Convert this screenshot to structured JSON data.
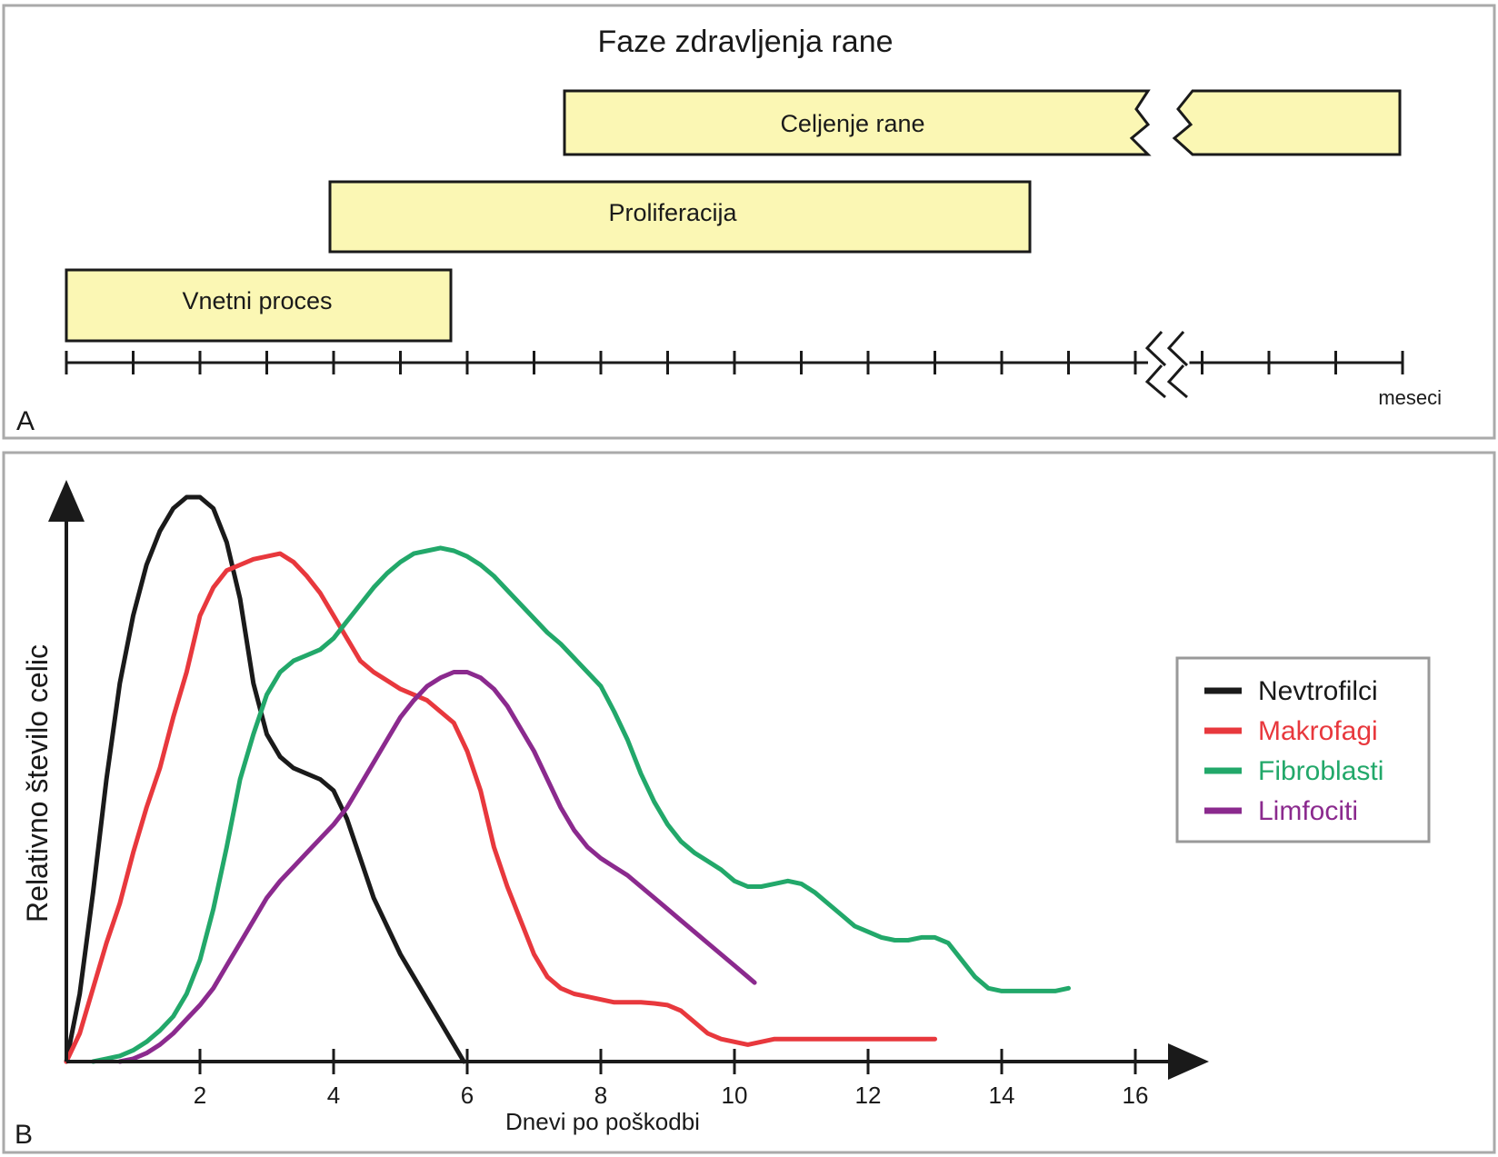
{
  "panel_a": {
    "letter": "A",
    "title": "Faze zdravljenja rane",
    "unit_label": "meseci",
    "phases": [
      {
        "label": "Vnetni proces",
        "start": 0,
        "end": 5.75,
        "broken": false
      },
      {
        "label": "Proliferacija",
        "start": 3.95,
        "end": 14.4,
        "broken": false
      },
      {
        "label": "Celjenje rane",
        "start": 7.45,
        "end": 20,
        "broken": true
      }
    ],
    "axis_ticks": 21,
    "break_between_ticks": [
      16,
      17
    ],
    "colors": {
      "bar_fill": "#fbf7b4",
      "stroke": "#1a1a1a",
      "frame": "#aaaaaa"
    }
  },
  "panel_b": {
    "letter": "B",
    "ylabel": "Relativno število celic",
    "xlabel": "Dnevi po poškodbi",
    "legend_position": "right"
  },
  "chart_data": {
    "type": "line",
    "xlabel": "Dnevi po poškodbi",
    "ylabel": "Relativno število celic",
    "xlim": [
      0,
      17
    ],
    "ylim": [
      0,
      100
    ],
    "xticks": [
      2,
      4,
      6,
      8,
      10,
      12,
      14,
      16
    ],
    "legend_position": "right",
    "series": [
      {
        "name": "Nevtrofilci",
        "color": "#1a1a1a",
        "points": [
          [
            0,
            0
          ],
          [
            0.2,
            12
          ],
          [
            0.4,
            30
          ],
          [
            0.6,
            50
          ],
          [
            0.8,
            67
          ],
          [
            1.0,
            79
          ],
          [
            1.2,
            88
          ],
          [
            1.4,
            94
          ],
          [
            1.6,
            98
          ],
          [
            1.8,
            100
          ],
          [
            2.0,
            100
          ],
          [
            2.2,
            98
          ],
          [
            2.4,
            92
          ],
          [
            2.6,
            82
          ],
          [
            2.8,
            67
          ],
          [
            3.0,
            58
          ],
          [
            3.2,
            54
          ],
          [
            3.4,
            52
          ],
          [
            3.6,
            51
          ],
          [
            3.8,
            50
          ],
          [
            4.0,
            48
          ],
          [
            4.2,
            43
          ],
          [
            4.4,
            36
          ],
          [
            4.6,
            29
          ],
          [
            4.8,
            24
          ],
          [
            5.0,
            19
          ],
          [
            5.2,
            15
          ],
          [
            5.4,
            11
          ],
          [
            5.6,
            7
          ],
          [
            5.8,
            3
          ],
          [
            5.95,
            0
          ]
        ]
      },
      {
        "name": "Makrofagi",
        "color": "#e8383d",
        "points": [
          [
            0,
            0
          ],
          [
            0.2,
            5
          ],
          [
            0.4,
            13
          ],
          [
            0.6,
            21
          ],
          [
            0.8,
            28
          ],
          [
            1.0,
            37
          ],
          [
            1.2,
            45
          ],
          [
            1.4,
            52
          ],
          [
            1.6,
            61
          ],
          [
            1.8,
            69
          ],
          [
            2.0,
            79
          ],
          [
            2.2,
            84
          ],
          [
            2.4,
            87
          ],
          [
            2.6,
            88
          ],
          [
            2.8,
            89
          ],
          [
            3.0,
            89.5
          ],
          [
            3.2,
            90
          ],
          [
            3.4,
            88.5
          ],
          [
            3.6,
            86
          ],
          [
            3.8,
            83
          ],
          [
            4.0,
            79
          ],
          [
            4.2,
            75
          ],
          [
            4.4,
            71
          ],
          [
            4.6,
            69
          ],
          [
            4.8,
            67.5
          ],
          [
            5.0,
            66
          ],
          [
            5.2,
            65
          ],
          [
            5.4,
            64
          ],
          [
            5.6,
            62
          ],
          [
            5.8,
            60
          ],
          [
            6.0,
            55
          ],
          [
            6.2,
            48
          ],
          [
            6.4,
            38
          ],
          [
            6.6,
            31
          ],
          [
            6.8,
            25
          ],
          [
            7.0,
            19
          ],
          [
            7.2,
            15
          ],
          [
            7.4,
            13
          ],
          [
            7.6,
            12
          ],
          [
            7.8,
            11.5
          ],
          [
            8.0,
            11
          ],
          [
            8.2,
            10.5
          ],
          [
            8.4,
            10.5
          ],
          [
            8.6,
            10.5
          ],
          [
            8.8,
            10.3
          ],
          [
            9.0,
            10
          ],
          [
            9.2,
            9
          ],
          [
            9.4,
            7
          ],
          [
            9.6,
            5
          ],
          [
            9.8,
            4
          ],
          [
            10.0,
            3.5
          ],
          [
            10.2,
            3
          ],
          [
            10.4,
            3.5
          ],
          [
            10.6,
            4
          ],
          [
            11.0,
            4
          ],
          [
            12.0,
            4
          ],
          [
            13.0,
            4
          ]
        ]
      },
      {
        "name": "Fibroblasti",
        "color": "#22a86a",
        "points": [
          [
            0.4,
            0
          ],
          [
            0.6,
            0.5
          ],
          [
            0.8,
            1
          ],
          [
            1.0,
            2
          ],
          [
            1.2,
            3.5
          ],
          [
            1.4,
            5.5
          ],
          [
            1.6,
            8
          ],
          [
            1.8,
            12
          ],
          [
            2.0,
            18
          ],
          [
            2.2,
            27
          ],
          [
            2.4,
            38
          ],
          [
            2.6,
            50
          ],
          [
            2.8,
            58
          ],
          [
            3.0,
            65
          ],
          [
            3.2,
            69
          ],
          [
            3.4,
            71
          ],
          [
            3.6,
            72
          ],
          [
            3.8,
            73
          ],
          [
            4.0,
            75
          ],
          [
            4.2,
            78
          ],
          [
            4.4,
            81
          ],
          [
            4.6,
            84
          ],
          [
            4.8,
            86.5
          ],
          [
            5.0,
            88.5
          ],
          [
            5.2,
            90
          ],
          [
            5.4,
            90.5
          ],
          [
            5.6,
            91
          ],
          [
            5.8,
            90.5
          ],
          [
            6.0,
            89.5
          ],
          [
            6.2,
            88
          ],
          [
            6.4,
            86
          ],
          [
            6.6,
            83.5
          ],
          [
            6.8,
            81
          ],
          [
            7.0,
            78.5
          ],
          [
            7.2,
            76
          ],
          [
            7.4,
            74
          ],
          [
            7.6,
            71.5
          ],
          [
            7.8,
            69
          ],
          [
            8.0,
            66.5
          ],
          [
            8.2,
            62
          ],
          [
            8.4,
            57
          ],
          [
            8.6,
            51
          ],
          [
            8.8,
            46
          ],
          [
            9.0,
            42
          ],
          [
            9.2,
            39
          ],
          [
            9.4,
            37
          ],
          [
            9.6,
            35.5
          ],
          [
            9.8,
            34
          ],
          [
            10.0,
            32
          ],
          [
            10.2,
            31
          ],
          [
            10.4,
            31
          ],
          [
            10.6,
            31.5
          ],
          [
            10.8,
            32
          ],
          [
            11.0,
            31.5
          ],
          [
            11.2,
            30
          ],
          [
            11.4,
            28
          ],
          [
            11.6,
            26
          ],
          [
            11.8,
            24
          ],
          [
            12.0,
            23
          ],
          [
            12.2,
            22
          ],
          [
            12.4,
            21.5
          ],
          [
            12.6,
            21.5
          ],
          [
            12.8,
            22
          ],
          [
            13.0,
            22
          ],
          [
            13.2,
            21
          ],
          [
            13.4,
            18
          ],
          [
            13.6,
            15
          ],
          [
            13.8,
            13
          ],
          [
            14.0,
            12.5
          ],
          [
            14.4,
            12.5
          ],
          [
            14.8,
            12.5
          ],
          [
            15.0,
            13
          ]
        ]
      },
      {
        "name": "Limfociti",
        "color": "#8b2a8e",
        "points": [
          [
            0.8,
            0
          ],
          [
            1.0,
            0.5
          ],
          [
            1.2,
            1.5
          ],
          [
            1.4,
            3
          ],
          [
            1.6,
            5
          ],
          [
            1.8,
            7.5
          ],
          [
            2.0,
            10
          ],
          [
            2.2,
            13
          ],
          [
            2.4,
            17
          ],
          [
            2.6,
            21
          ],
          [
            2.8,
            25
          ],
          [
            3.0,
            29
          ],
          [
            3.2,
            32
          ],
          [
            3.4,
            34.5
          ],
          [
            3.6,
            37
          ],
          [
            3.8,
            39.5
          ],
          [
            4.0,
            42
          ],
          [
            4.2,
            45
          ],
          [
            4.4,
            49
          ],
          [
            4.6,
            53
          ],
          [
            4.8,
            57
          ],
          [
            5.0,
            61
          ],
          [
            5.2,
            64
          ],
          [
            5.4,
            66.5
          ],
          [
            5.6,
            68
          ],
          [
            5.8,
            69
          ],
          [
            6.0,
            69
          ],
          [
            6.2,
            68
          ],
          [
            6.4,
            66
          ],
          [
            6.6,
            63
          ],
          [
            6.8,
            59
          ],
          [
            7.0,
            55
          ],
          [
            7.2,
            50
          ],
          [
            7.4,
            45
          ],
          [
            7.6,
            41
          ],
          [
            7.8,
            38
          ],
          [
            8.0,
            36
          ],
          [
            8.2,
            34.5
          ],
          [
            8.4,
            33
          ],
          [
            8.6,
            31
          ],
          [
            8.8,
            29
          ],
          [
            9.0,
            27
          ],
          [
            9.2,
            25
          ],
          [
            9.4,
            23
          ],
          [
            9.6,
            21
          ],
          [
            9.8,
            19
          ],
          [
            10.0,
            17
          ],
          [
            10.2,
            15
          ],
          [
            10.3,
            14
          ]
        ]
      }
    ]
  }
}
